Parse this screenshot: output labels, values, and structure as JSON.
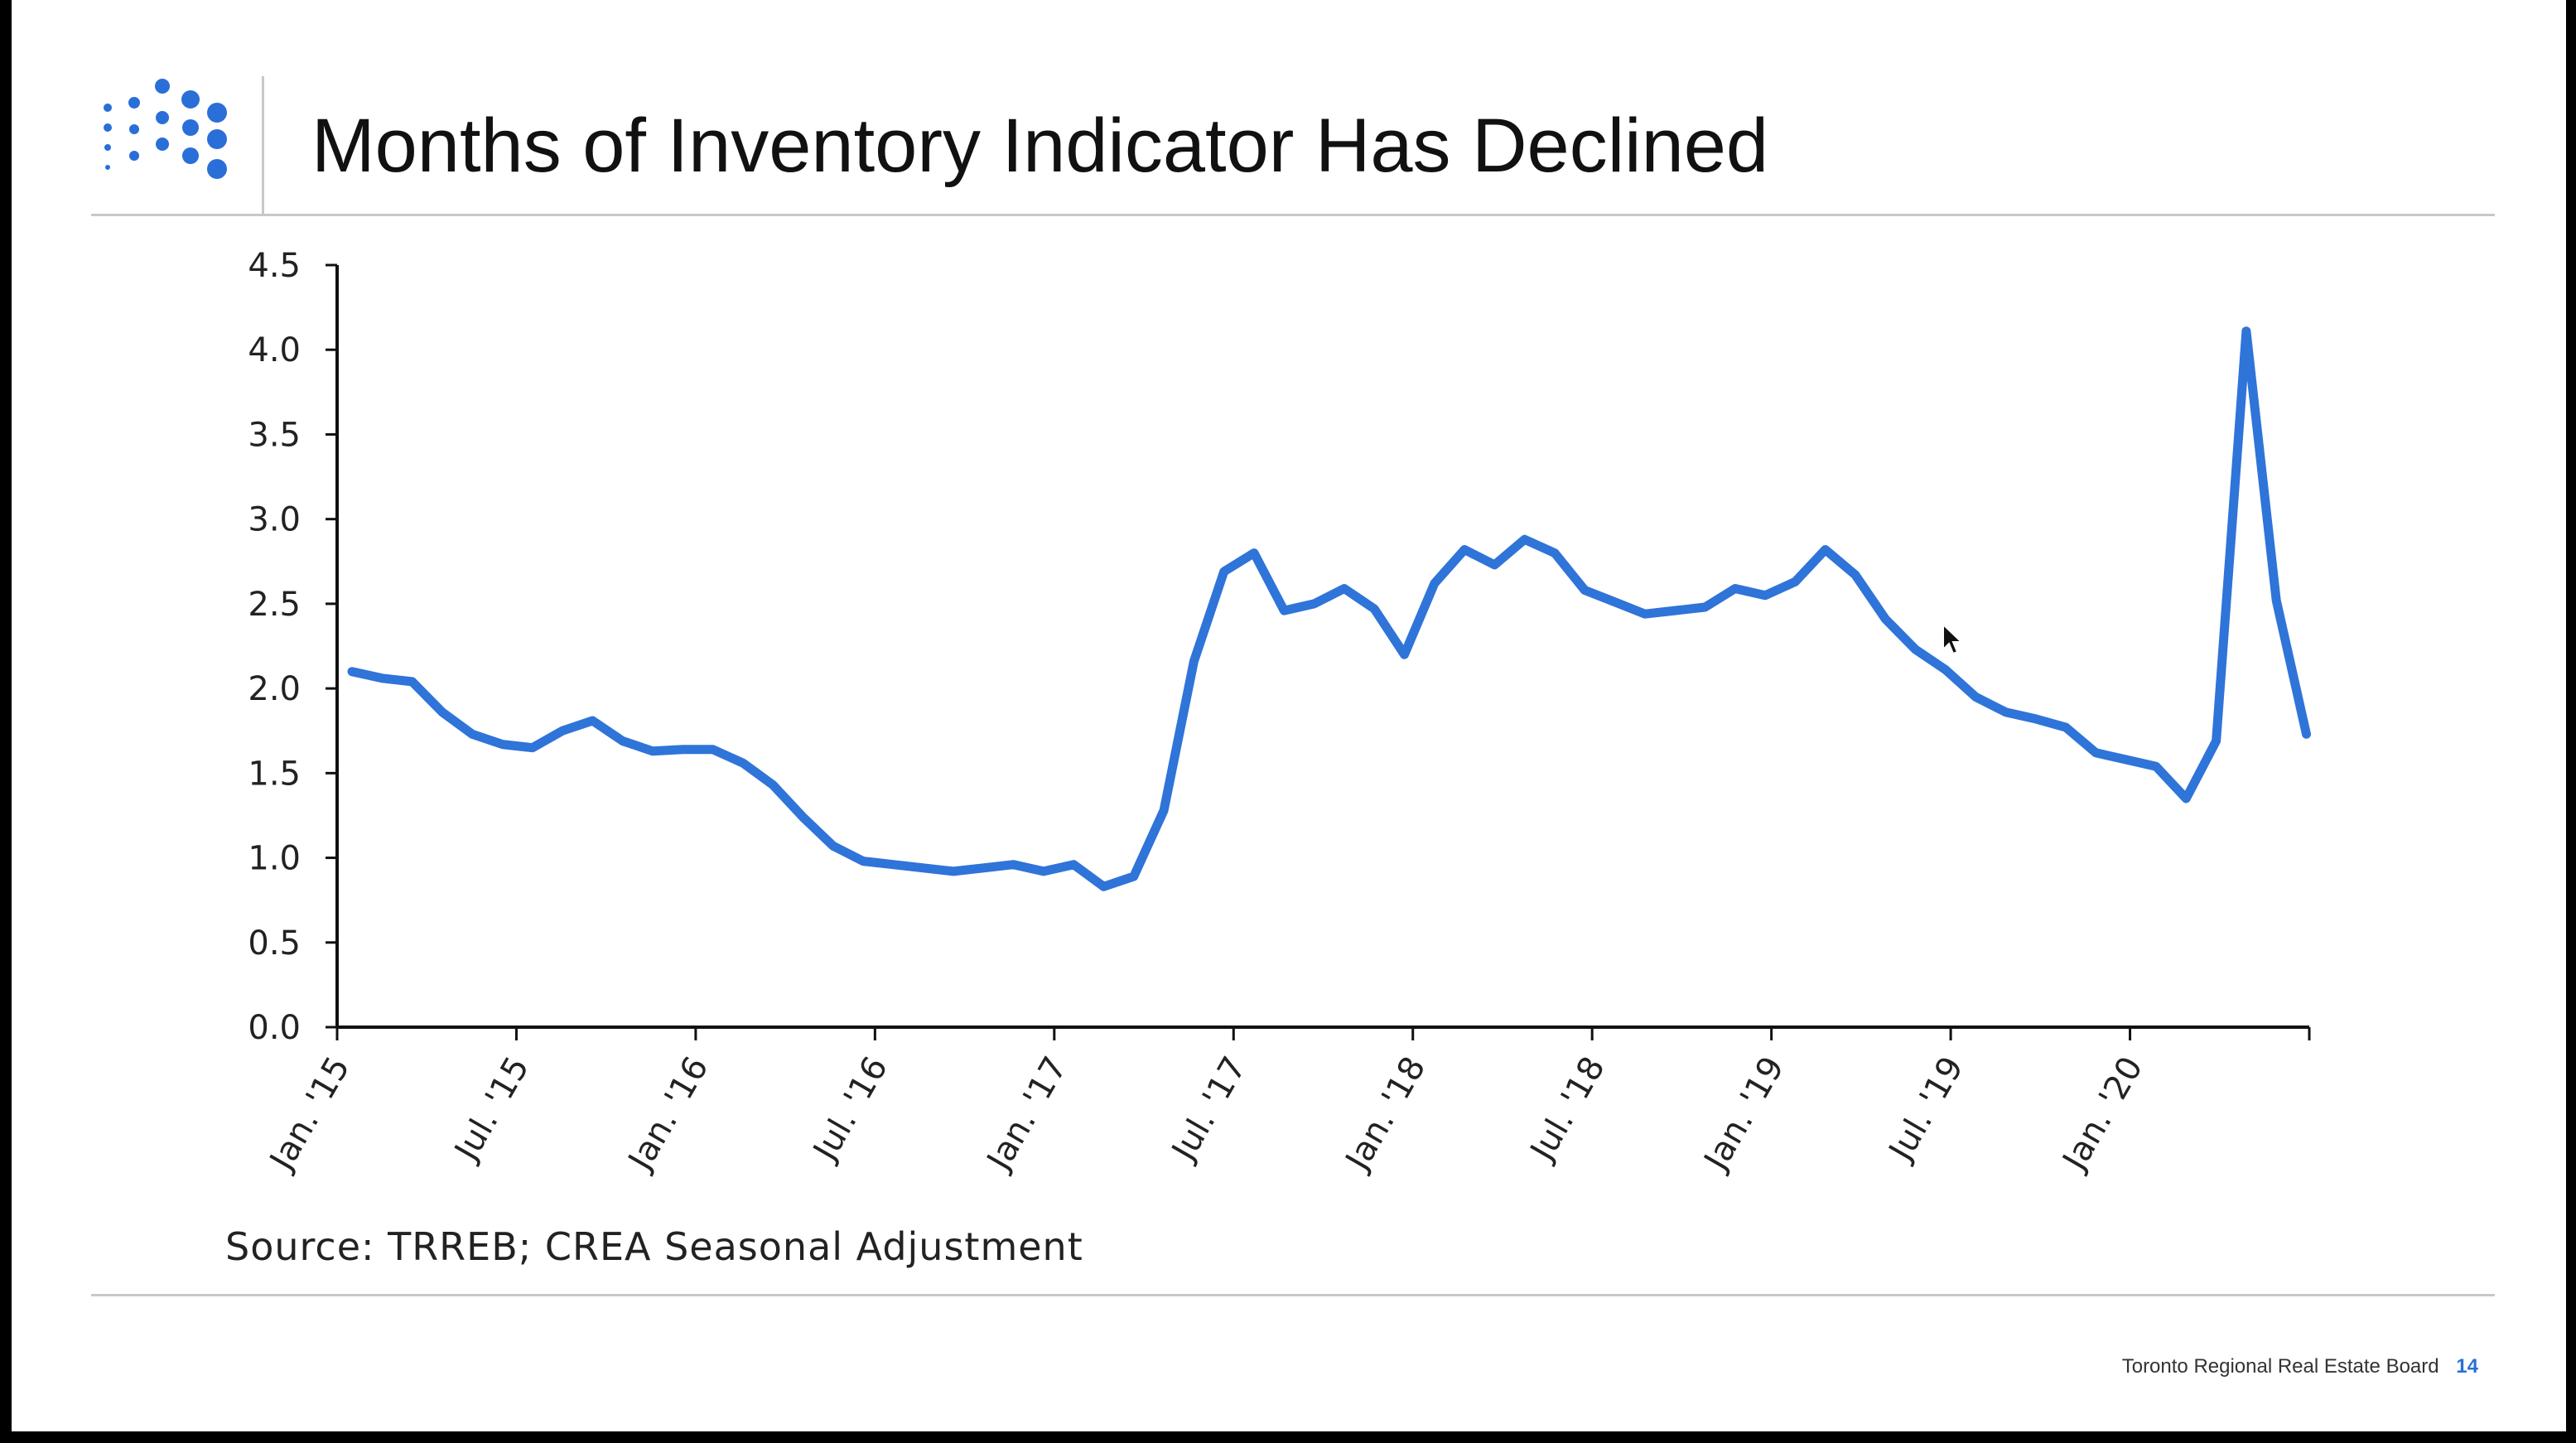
{
  "slide": {
    "title": "Months of Inventory Indicator Has Declined",
    "source_note": "Source: TRREB; CREA Seasonal Adjustment",
    "footer_org": "Toronto Regional Real Estate Board",
    "page_number": "14",
    "accent_color": "#2a6fd8",
    "logo_icon": "dot-grid-logo-icon"
  },
  "chart_data": {
    "type": "line",
    "title": "",
    "xlabel": "",
    "ylabel": "",
    "ylim": [
      0,
      4.5
    ],
    "yticks": [
      "0.0",
      "0.5",
      "1.0",
      "1.5",
      "2.0",
      "2.5",
      "3.0",
      "3.5",
      "4.0",
      "4.5"
    ],
    "xtick_labels": [
      "Jan. '15",
      "Jul. '15",
      "Jan. '16",
      "Jul. '16",
      "Jan. '17",
      "Jul. '17",
      "Jan. '18",
      "Jul. '18",
      "Jan. '19",
      "Jul. '19",
      "Jan. '20"
    ],
    "xtick_every": 6,
    "line_color": "#2f74d8",
    "grid": false,
    "legend": "none",
    "series": [
      {
        "values": [
          2.1,
          2.06,
          2.04,
          1.86,
          1.73,
          1.67,
          1.65,
          1.75,
          1.81,
          1.69,
          1.63,
          1.64,
          1.64,
          1.56,
          1.43,
          1.24,
          1.07,
          0.98,
          0.96,
          0.94,
          0.92,
          0.94,
          0.96,
          0.92,
          0.96,
          0.83,
          0.89,
          1.28,
          2.16,
          2.69,
          2.8,
          2.46,
          2.5,
          2.59,
          2.47,
          2.2,
          2.62,
          2.82,
          2.73,
          2.88,
          2.8,
          2.58,
          2.51,
          2.44,
          2.46,
          2.48,
          2.59,
          2.55,
          2.63,
          2.82,
          2.67,
          2.41,
          2.23,
          2.11,
          1.95,
          1.86,
          1.82,
          1.77,
          1.62,
          1.58,
          1.54,
          1.35,
          1.69,
          4.11,
          2.52,
          1.73
        ]
      }
    ]
  }
}
